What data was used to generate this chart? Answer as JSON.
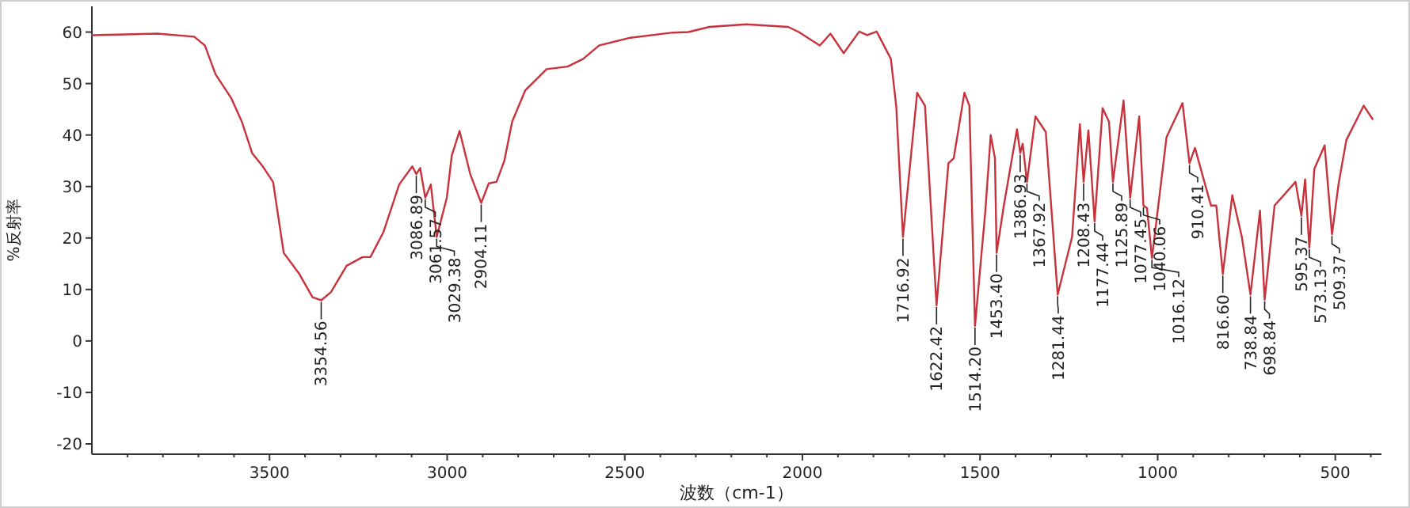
{
  "chart_data": {
    "type": "line",
    "xlabel": "波数（cm-1）",
    "ylabel": "%反射率",
    "xlim": [
      4000,
      370
    ],
    "ylim": [
      -22,
      65
    ],
    "xticks": [
      {
        "value": 3900,
        "label": null
      },
      {
        "value": 3800,
        "label": null
      },
      {
        "value": 3700,
        "label": null
      },
      {
        "value": 3600,
        "label": null
      },
      3500,
      {
        "value": 3400,
        "label": null
      },
      {
        "value": 3300,
        "label": null
      },
      {
        "value": 3200,
        "label": null
      },
      {
        "value": 3100,
        "label": null
      },
      3000,
      {
        "value": 2900,
        "label": null
      },
      {
        "value": 2800,
        "label": null
      },
      {
        "value": 2700,
        "label": null
      },
      {
        "value": 2600,
        "label": null
      },
      2500,
      {
        "value": 2400,
        "label": null
      },
      {
        "value": 2300,
        "label": null
      },
      {
        "value": 2200,
        "label": null
      },
      {
        "value": 2100,
        "label": null
      },
      2000,
      {
        "value": 1900,
        "label": null
      },
      {
        "value": 1800,
        "label": null
      },
      {
        "value": 1700,
        "label": null
      },
      {
        "value": 1600,
        "label": null
      },
      1500,
      {
        "value": 1400,
        "label": null
      },
      {
        "value": 1300,
        "label": null
      },
      {
        "value": 1200,
        "label": null
      },
      {
        "value": 1100,
        "label": null
      },
      1000,
      {
        "value": 900,
        "label": null
      },
      {
        "value": 800,
        "label": null
      },
      {
        "value": 700,
        "label": null
      },
      {
        "value": 600,
        "label": null
      },
      500,
      {
        "value": 400,
        "label": null
      }
    ],
    "yticks": [
      -20,
      -10,
      0,
      10,
      20,
      30,
      40,
      50,
      60
    ],
    "grid": false,
    "marker": "none",
    "line_style": "solid",
    "series": [
      {
        "color": "#c8323c",
        "x": [
          4000,
          3815,
          3712,
          3682,
          3652,
          3608,
          3578,
          3549,
          3519,
          3490,
          3460,
          3416,
          3379,
          3354.56,
          3327,
          3283,
          3238,
          3216,
          3179,
          3135,
          3098,
          3086.89,
          3076,
          3061.57,
          3046,
          3029.38,
          3001,
          2987,
          2965,
          2935,
          2904.11,
          2883,
          2861,
          2839,
          2817,
          2780,
          2720,
          2661,
          2617,
          2572,
          2484,
          2365,
          2321,
          2262,
          2158,
          2040,
          2010,
          1951,
          1921,
          1884,
          1840,
          1818,
          1791,
          1751,
          1736,
          1716.92,
          1677,
          1655,
          1622.42,
          1589,
          1574,
          1544,
          1530,
          1514.2,
          1485,
          1470,
          1458,
          1453.4,
          1433,
          1396,
          1386.93,
          1380,
          1367.92,
          1344,
          1315,
          1281.44,
          1241,
          1219,
          1208.43,
          1195,
          1177.44,
          1155,
          1137,
          1125.89,
          1096,
          1077.45,
          1052,
          1040.06,
          1030,
          1016.12,
          975,
          930,
          910.41,
          895,
          850,
          835,
          816.6,
          790,
          763,
          738.84,
          712,
          698.84,
          671,
          612,
          595.37,
          585,
          573.13,
          559,
          530,
          509.37,
          491,
          469,
          420,
          395
        ],
        "values": [
          59.4,
          59.7,
          59.1,
          57.4,
          51.8,
          47.2,
          42.6,
          36.5,
          33.9,
          30.9,
          17.1,
          13,
          8.5,
          7.9,
          9.5,
          14.6,
          16.3,
          16.3,
          21.2,
          30.4,
          33.9,
          32.4,
          33.6,
          27.8,
          30.4,
          20.2,
          27.8,
          36,
          40.8,
          32.4,
          26.8,
          30.6,
          30.9,
          35,
          42.6,
          48.7,
          52.8,
          53.3,
          54.8,
          57.4,
          58.9,
          59.9,
          60,
          61,
          61.5,
          61,
          60,
          57.4,
          59.7,
          55.9,
          60.1,
          59.4,
          60.1,
          54.8,
          45.7,
          20.2,
          48.2,
          45.7,
          6.9,
          34.5,
          35.5,
          48.2,
          45.7,
          2.9,
          25.3,
          40,
          35.5,
          17.1,
          26.3,
          41.1,
          36.5,
          38.3,
          30.9,
          43.6,
          40.6,
          9,
          20.2,
          42.1,
          30.9,
          40.9,
          23.2,
          45.2,
          42.6,
          30.9,
          46.7,
          27.8,
          43.6,
          26.3,
          25.8,
          16.1,
          39.6,
          46.2,
          34.5,
          37.5,
          26.3,
          26.3,
          13,
          28.3,
          20.2,
          9,
          25.3,
          8,
          26.3,
          30.9,
          24.3,
          31.4,
          18.1,
          33.4,
          38,
          20.7,
          30.4,
          39,
          45.7,
          43.1
        ]
      }
    ],
    "annotations": [
      {
        "text": "3354.56",
        "x": 3354.56,
        "y": 7.9
      },
      {
        "text": "3086.89",
        "x": 3086.89,
        "y": 32.4
      },
      {
        "text": "3061.57",
        "x": 3061.57,
        "y": 27.8
      },
      {
        "text": "3029.38",
        "x": 3029.38,
        "y": 20.2
      },
      {
        "text": "2904.11",
        "x": 2904.11,
        "y": 26.8
      },
      {
        "text": "1716.92",
        "x": 1716.92,
        "y": 20.2
      },
      {
        "text": "1622.42",
        "x": 1622.42,
        "y": 6.9
      },
      {
        "text": "1514.20",
        "x": 1514.2,
        "y": 2.9
      },
      {
        "text": "1453.40",
        "x": 1453.4,
        "y": 17.1
      },
      {
        "text": "1386.93",
        "x": 1386.93,
        "y": 36.5
      },
      {
        "text": "1367.92",
        "x": 1367.92,
        "y": 30.9
      },
      {
        "text": "1281.44",
        "x": 1281.44,
        "y": 9
      },
      {
        "text": "1208.43",
        "x": 1208.43,
        "y": 30.9
      },
      {
        "text": "1177.44",
        "x": 1177.44,
        "y": 23.2
      },
      {
        "text": "1125.89",
        "x": 1125.89,
        "y": 30.9
      },
      {
        "text": "1077.45",
        "x": 1077.45,
        "y": 27.8
      },
      {
        "text": "1040.06",
        "x": 1040.06,
        "y": 26.3
      },
      {
        "text": "1016.12",
        "x": 1016.12,
        "y": 16.1
      },
      {
        "text": "910.41",
        "x": 910.41,
        "y": 34.5
      },
      {
        "text": "816.60",
        "x": 816.6,
        "y": 13
      },
      {
        "text": "738.84",
        "x": 738.84,
        "y": 9
      },
      {
        "text": "698.84",
        "x": 698.84,
        "y": 8
      },
      {
        "text": "595.37",
        "x": 595.37,
        "y": 24.3
      },
      {
        "text": "573.13",
        "x": 573.13,
        "y": 18.1
      },
      {
        "text": "509.37",
        "x": 509.37,
        "y": 20.7
      }
    ]
  }
}
